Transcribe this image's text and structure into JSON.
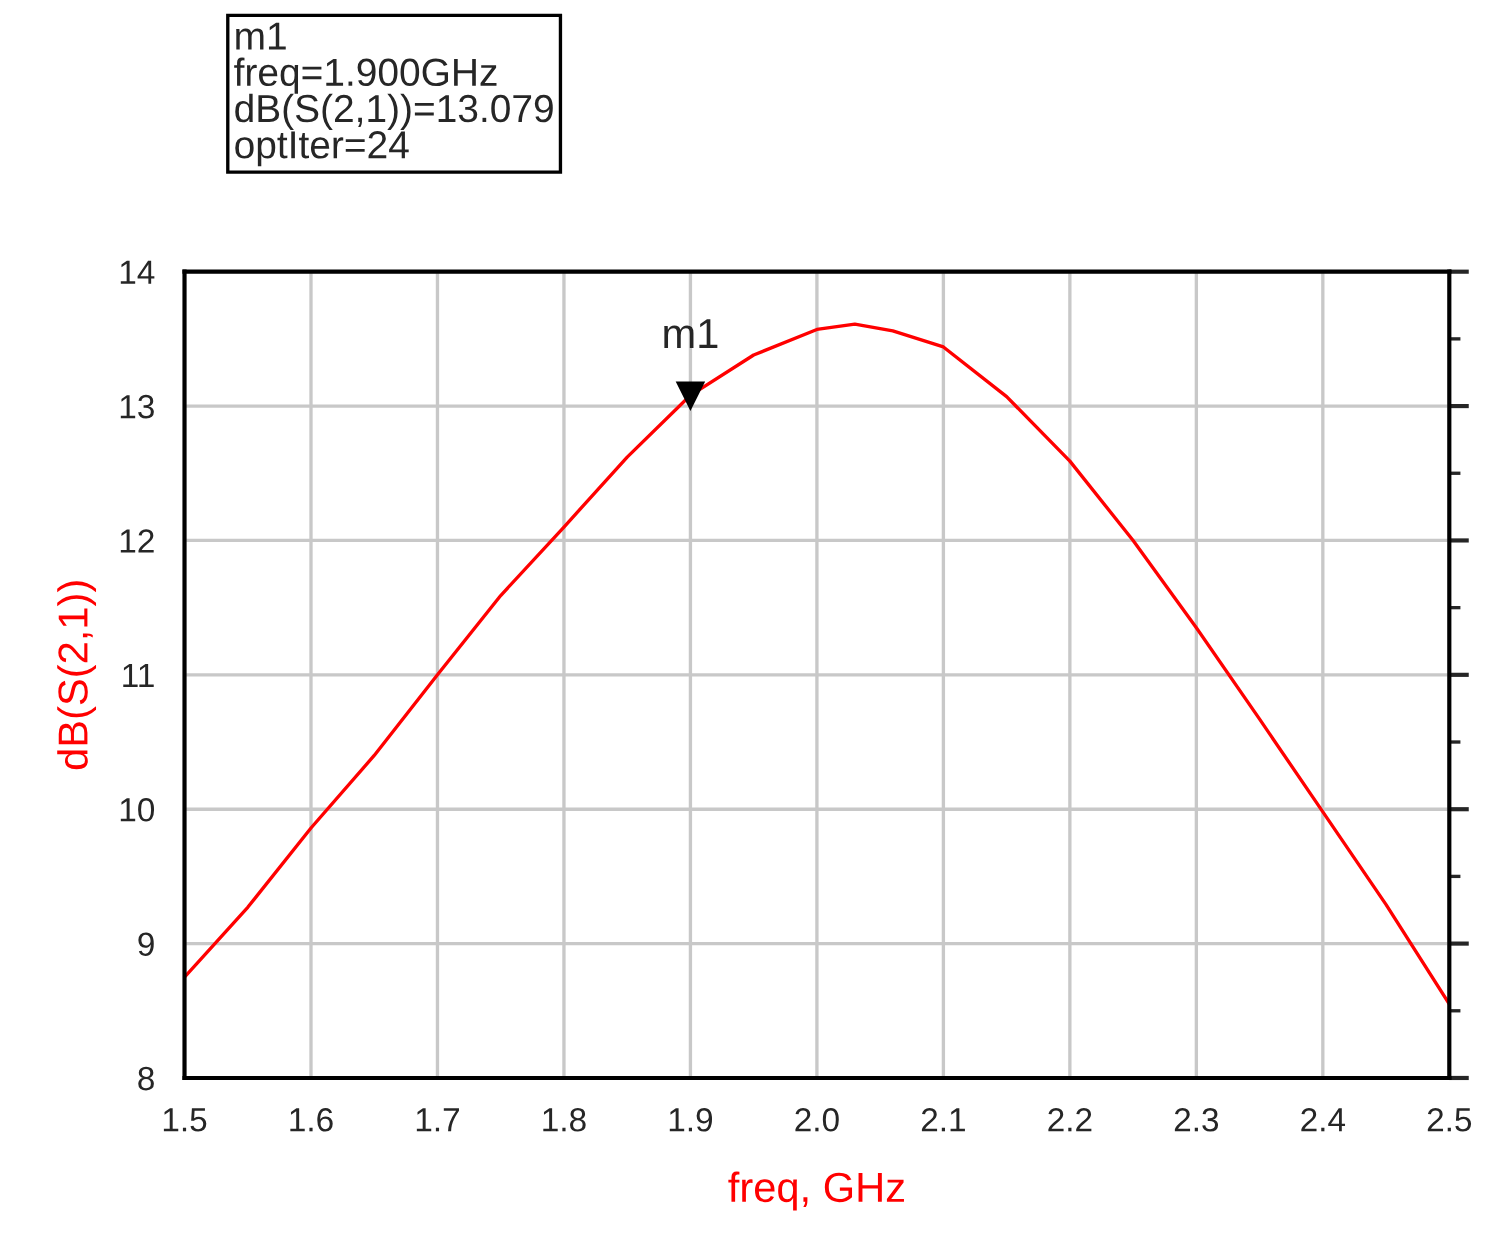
{
  "chart_data": {
    "type": "line",
    "xlabel": "freq, GHz",
    "ylabel": "dB(S(2,1))",
    "x": [
      1.5,
      1.55,
      1.6,
      1.65,
      1.7,
      1.75,
      1.8,
      1.85,
      1.9,
      1.95,
      2.0,
      2.03,
      2.06,
      2.1,
      2.15,
      2.2,
      2.25,
      2.3,
      2.35,
      2.4,
      2.45,
      2.5
    ],
    "series": [
      {
        "color": "#ff0000",
        "values": [
          8.75,
          9.27,
          9.86,
          10.4,
          11.0,
          11.59,
          12.1,
          12.62,
          13.08,
          13.38,
          13.57,
          13.61,
          13.56,
          13.44,
          13.07,
          12.59,
          12.0,
          11.35,
          10.67,
          9.98,
          9.29,
          8.55
        ]
      }
    ],
    "xlim": [
      1.5,
      2.5
    ],
    "ylim": [
      8,
      14
    ],
    "xticks": [
      1.5,
      1.6,
      1.7,
      1.8,
      1.9,
      {
        "value": 2.0,
        "label": "2.0"
      },
      2.1,
      2.2,
      2.3,
      2.4,
      2.5
    ],
    "yticks": [
      8,
      9,
      10,
      11,
      12,
      13,
      14
    ],
    "grid": true,
    "marker": "none",
    "line_style": "solid",
    "annotations": [
      {
        "text": "m1",
        "x": 1.9,
        "y": 13.079
      },
      "m1\nfreq=1.900GHz\ndB(S(2,1))=13.079\noptIter=24"
    ]
  }
}
